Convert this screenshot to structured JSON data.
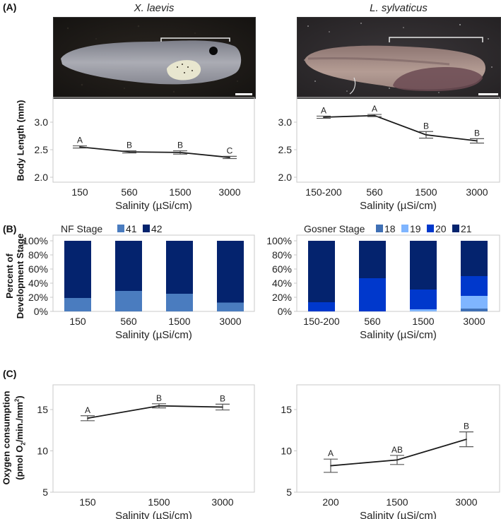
{
  "panels": {
    "a": "(A)",
    "b": "(B)",
    "c": "(C)"
  },
  "species": {
    "left": "X. laevis",
    "right": "L. sylvaticus"
  },
  "photos": {
    "left": {
      "subject": "X. laevis tadpole",
      "bg": "#1f1c19",
      "body": "#b9bcc6"
    },
    "right": {
      "subject": "L. sylvaticus tadpole",
      "bg": "#2f2c2e",
      "body": "#a48a86"
    }
  },
  "colors": {
    "line": "#1a1a1a",
    "axis": "#c8c8c8",
    "nf41": "#4a7cbf",
    "nf42": "#04236e",
    "g18": "#3f70b5",
    "g19": "#7fb5ff",
    "g20": "#0038cc",
    "g21": "#04236e"
  },
  "chart_data": [
    {
      "id": "A-left",
      "type": "line",
      "title": "X. laevis",
      "xlabel": "Salinity (µSi/cm)",
      "ylabel": "Body Length (mm)",
      "categories": [
        "150",
        "560",
        "1500",
        "3000"
      ],
      "values": [
        2.55,
        2.46,
        2.45,
        2.36
      ],
      "errors": [
        0.02,
        0.02,
        0.03,
        0.02
      ],
      "letters": [
        "A",
        "B",
        "B",
        "C"
      ],
      "ylim": [
        1.92,
        3.45
      ],
      "yticks": [
        "2.0",
        "2.5",
        "3.0"
      ],
      "ytick_values": [
        2.0,
        2.5,
        3.0
      ]
    },
    {
      "id": "A-right",
      "type": "line",
      "title": "L. sylvaticus",
      "xlabel": "Salinity (µSi/cm)",
      "ylabel": "Body Length (mm)",
      "categories": [
        "150-200",
        "560",
        "1500",
        "3000"
      ],
      "values": [
        3.09,
        3.12,
        2.77,
        2.66
      ],
      "errors": [
        0.02,
        0.02,
        0.06,
        0.04
      ],
      "letters": [
        "A",
        "A",
        "B",
        "B"
      ],
      "ylim": [
        1.92,
        3.45
      ],
      "yticks": [
        "2.0",
        "2.5",
        "3.0"
      ],
      "ytick_values": [
        2.0,
        2.5,
        3.0
      ]
    },
    {
      "id": "B-left",
      "type": "bar",
      "stacked": true,
      "xlabel": "Salinity (µSi/cm)",
      "ylabel": "Percent of Development Stage",
      "legend_title": "NF Stage",
      "legend_position": "top",
      "categories": [
        "150",
        "560",
        "1500",
        "3000"
      ],
      "series": [
        {
          "name": "41",
          "color_key": "nf41",
          "values": [
            19,
            29,
            25,
            12.5
          ]
        },
        {
          "name": "42",
          "color_key": "nf42",
          "values": [
            81,
            71,
            75,
            87.5
          ]
        }
      ],
      "ylim": [
        0,
        100
      ],
      "yticks": [
        "0%",
        "20%",
        "40%",
        "60%",
        "80%",
        "100%"
      ],
      "ytick_values": [
        0,
        20,
        40,
        60,
        80,
        100
      ]
    },
    {
      "id": "B-right",
      "type": "bar",
      "stacked": true,
      "xlabel": "Salinity (µSi/cm)",
      "ylabel": "Percent of Development Stage",
      "legend_title": "Gosner Stage",
      "legend_position": "top",
      "categories": [
        "150-200",
        "560",
        "1500",
        "3000"
      ],
      "series": [
        {
          "name": "18",
          "color_key": "g18",
          "values": [
            0,
            0,
            0,
            4
          ]
        },
        {
          "name": "19",
          "color_key": "g19",
          "values": [
            0,
            0,
            3,
            18
          ]
        },
        {
          "name": "20",
          "color_key": "g20",
          "values": [
            13,
            47,
            28,
            28
          ]
        },
        {
          "name": "21",
          "color_key": "g21",
          "values": [
            87,
            53,
            69,
            50
          ]
        }
      ],
      "ylim": [
        0,
        100
      ],
      "yticks": [
        "0%",
        "20%",
        "40%",
        "60%",
        "80%",
        "100%"
      ],
      "ytick_values": [
        0,
        20,
        40,
        60,
        80,
        100
      ]
    },
    {
      "id": "C-left",
      "type": "line",
      "xlabel": "Salinity (µSi/cm)",
      "ylabel": "Oxygen consumption (pmol O2/min./mm2)",
      "categories": [
        "150",
        "1500",
        "3000"
      ],
      "values": [
        13.95,
        15.45,
        15.3
      ],
      "errors": [
        0.3,
        0.25,
        0.35
      ],
      "letters": [
        "A",
        "B",
        "B"
      ],
      "ylim": [
        5,
        18
      ],
      "yticks": [
        "5",
        "10",
        "15"
      ],
      "ytick_values": [
        5,
        10,
        15
      ]
    },
    {
      "id": "C-right",
      "type": "line",
      "xlabel": "Salinity (µSi/cm)",
      "ylabel": "Oxygen consumption (pmol O2/min./mm2)",
      "categories": [
        "200",
        "1500",
        "3000"
      ],
      "values": [
        8.2,
        8.9,
        11.4
      ],
      "errors": [
        0.8,
        0.55,
        0.9
      ],
      "letters": [
        "A",
        "AB",
        "B"
      ],
      "ylim": [
        5,
        18
      ],
      "yticks": [
        "5",
        "10",
        "15"
      ],
      "ytick_values": [
        5,
        10,
        15
      ]
    }
  ],
  "labels": {
    "a_ylabel": "Body Length (mm)",
    "b_ylabel_1": "Percent of",
    "b_ylabel_2": "Development Stage",
    "c_ylabel_1": "Oxygen consumption",
    "c_ylabel_2_pre": "(pmol O",
    "c_ylabel_2_sub": "2",
    "c_ylabel_2_mid": "/min./mm",
    "c_ylabel_2_sup": "2",
    "c_ylabel_2_post": ")"
  }
}
